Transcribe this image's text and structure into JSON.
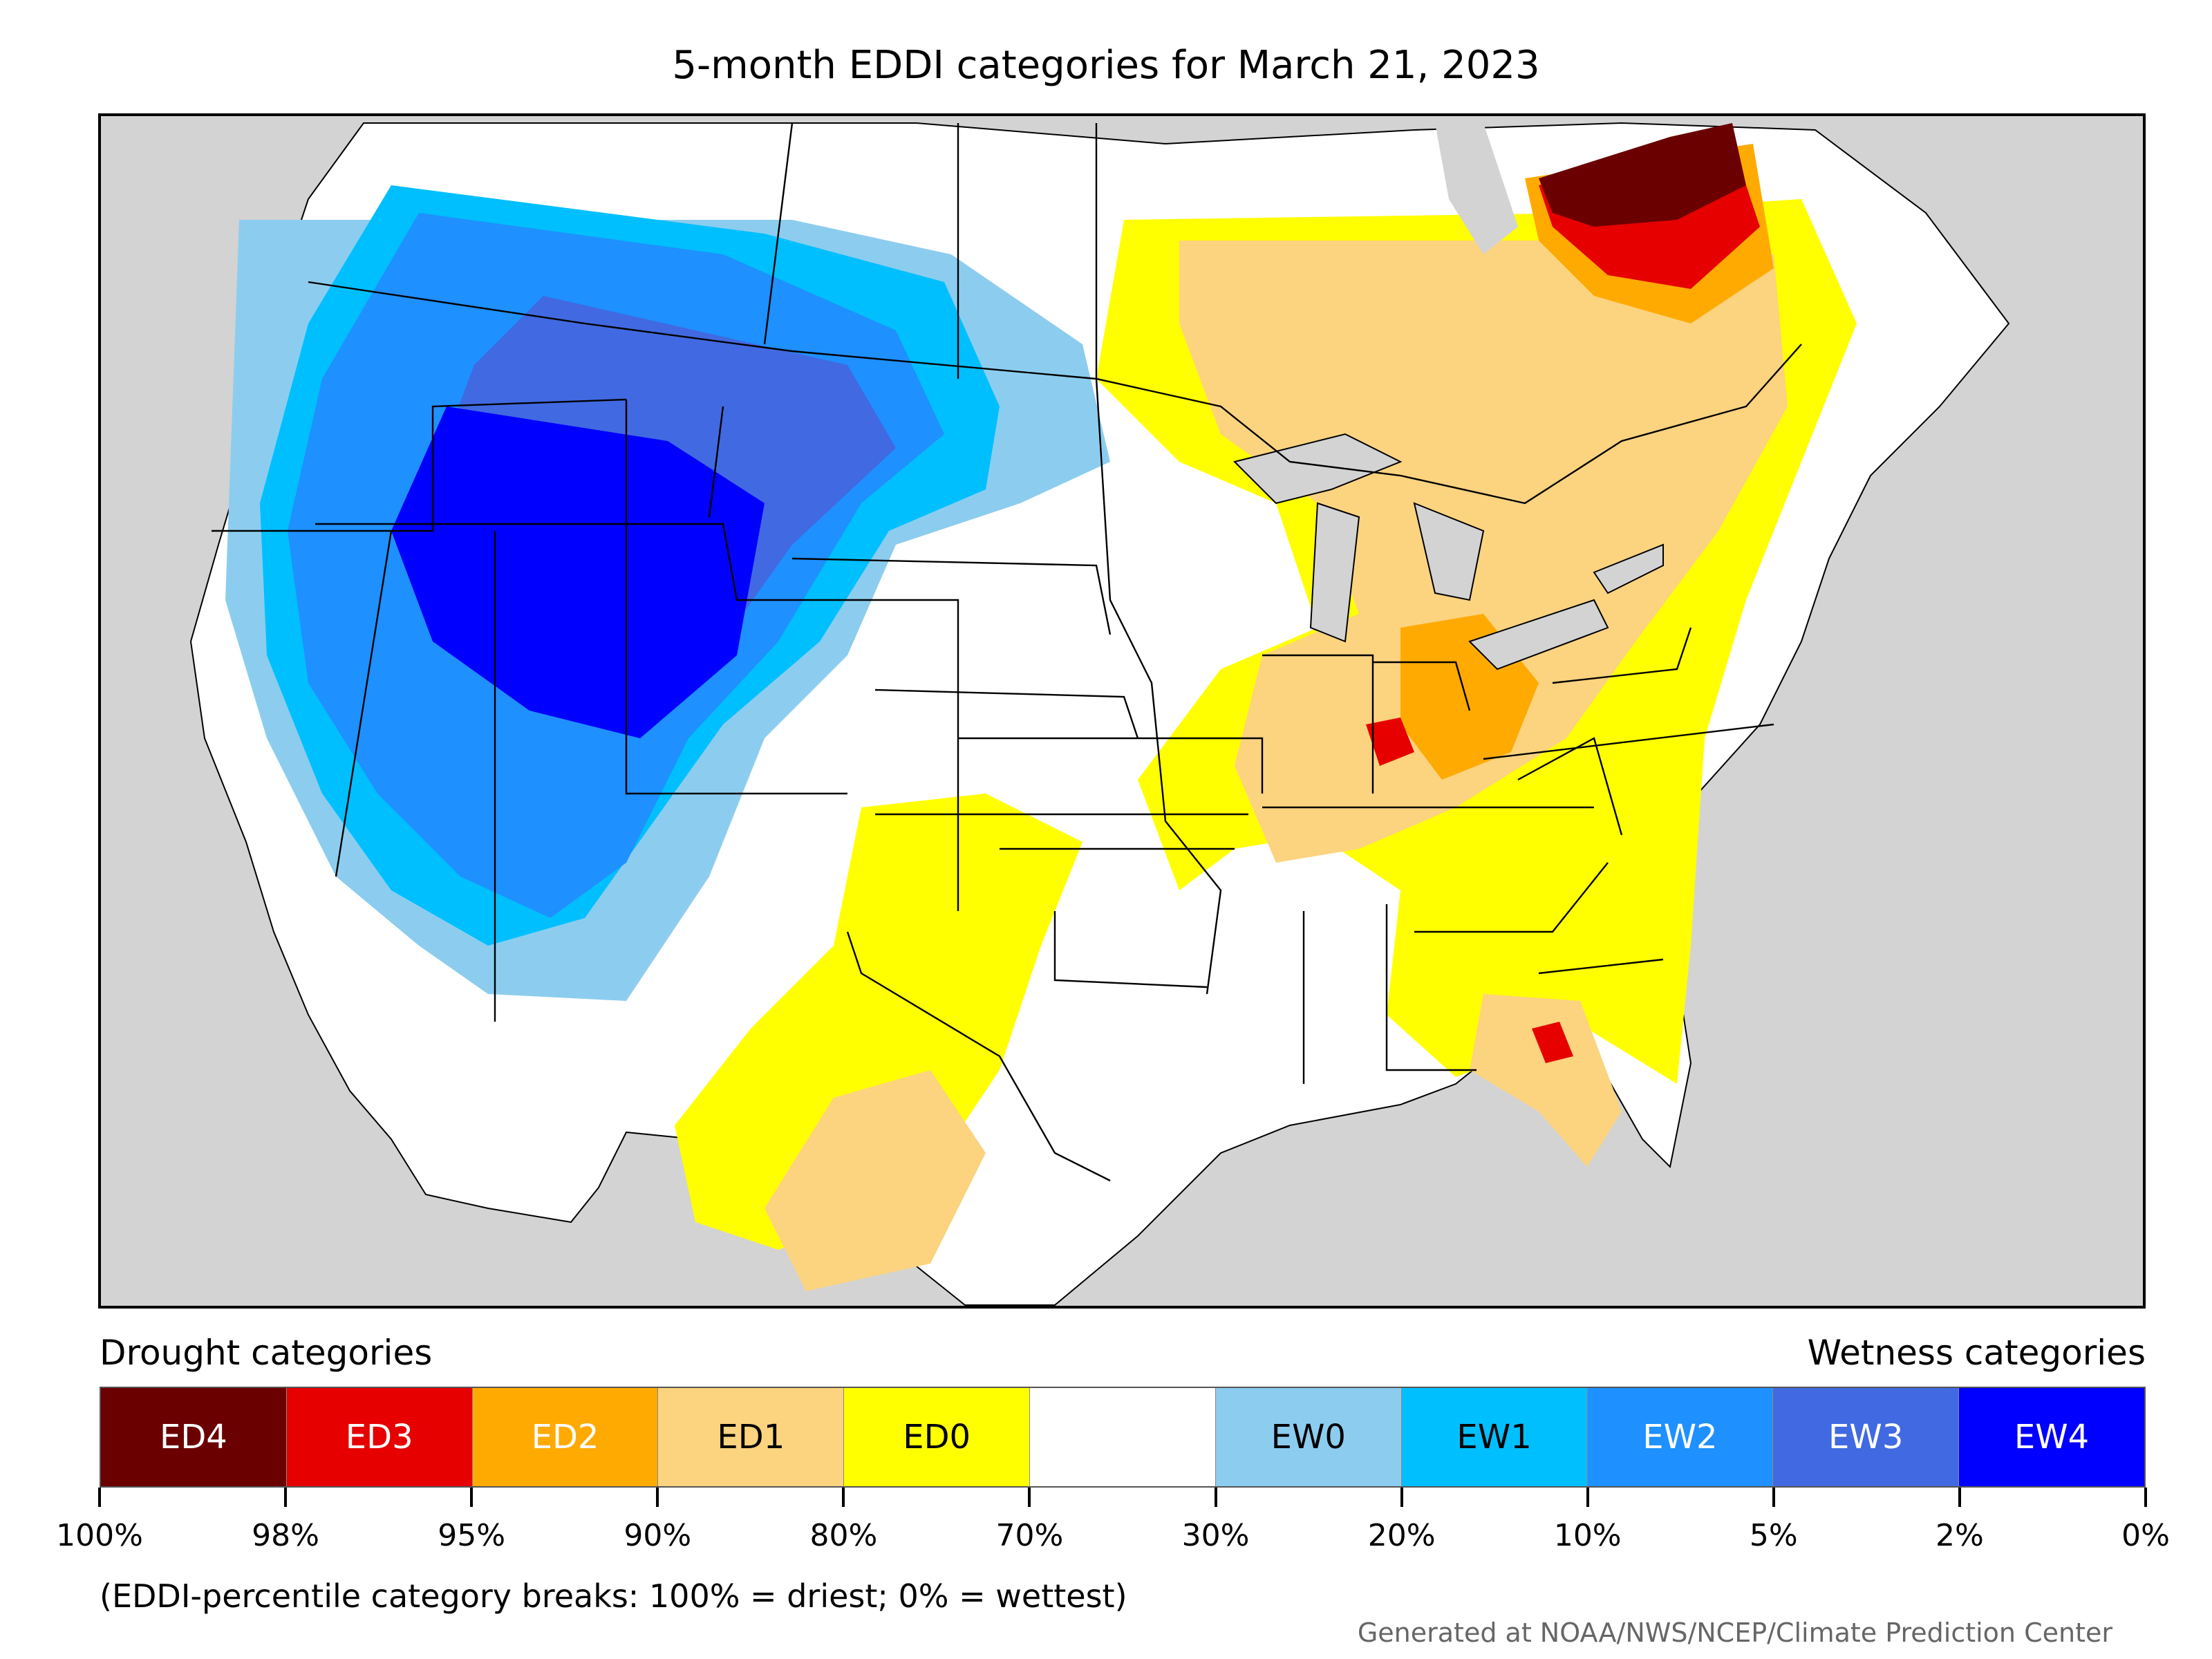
{
  "title": "5-month EDDI categories for March 21, 2023",
  "legend": {
    "drought_heading": "Drought categories",
    "wetness_heading": "Wetness categories",
    "categories": [
      {
        "label": "ED4",
        "color": "#6b0000",
        "text_color": "#ffffff"
      },
      {
        "label": "ED3",
        "color": "#e60000",
        "text_color": "#ffffff"
      },
      {
        "label": "ED2",
        "color": "#ffaa00",
        "text_color": "#ffffff"
      },
      {
        "label": "ED1",
        "color": "#fcd37f",
        "text_color": "#000000"
      },
      {
        "label": "ED0",
        "color": "#ffff00",
        "text_color": "#000000"
      },
      {
        "label": "",
        "color": "#ffffff",
        "text_color": "#000000"
      },
      {
        "label": "EW0",
        "color": "#8ccdef",
        "text_color": "#000000"
      },
      {
        "label": "EW1",
        "color": "#00bfff",
        "text_color": "#000000"
      },
      {
        "label": "EW2",
        "color": "#1e90ff",
        "text_color": "#ffffff"
      },
      {
        "label": "EW3",
        "color": "#4169e1",
        "text_color": "#ffffff"
      },
      {
        "label": "EW4",
        "color": "#0000ff",
        "text_color": "#ffffff"
      }
    ],
    "tick_labels": [
      "100%",
      "98%",
      "95%",
      "90%",
      "80%",
      "70%",
      "30%",
      "20%",
      "10%",
      "5%",
      "2%",
      "0%"
    ]
  },
  "note": "(EDDI-percentile category breaks: 100% = driest; 0% = wettest)",
  "credit": "Generated at NOAA/NWS/NCEP/Climate Prediction Center",
  "colors": {
    "background_land_outside": "#d3d3d3",
    "no_category": "#ffffff"
  }
}
